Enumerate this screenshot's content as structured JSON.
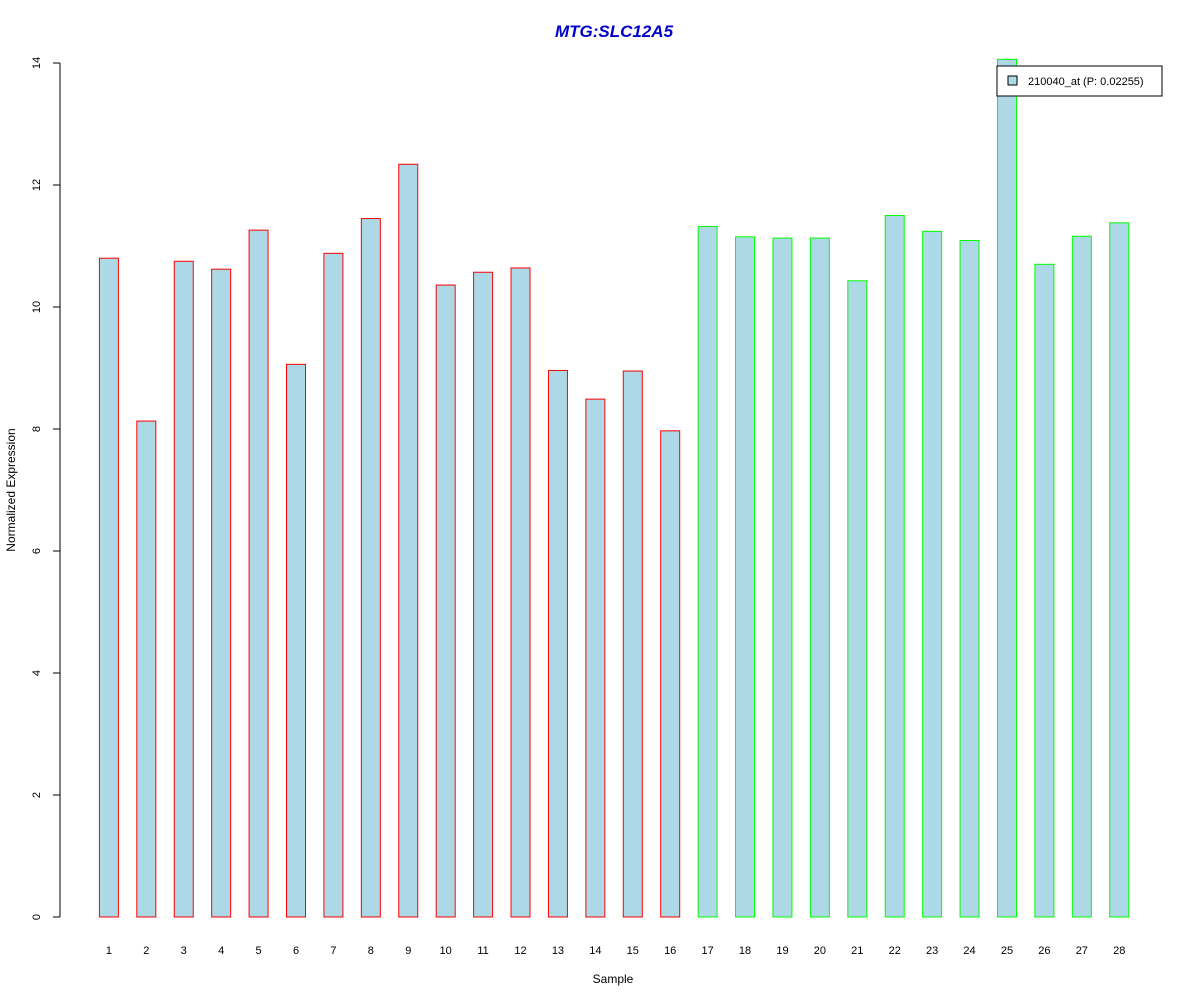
{
  "chart_data": {
    "type": "bar",
    "title": "MTG:SLC12A5",
    "xlabel": "Sample",
    "ylabel": "Normalized Expression",
    "categories": [
      "1",
      "2",
      "3",
      "4",
      "5",
      "6",
      "7",
      "8",
      "9",
      "10",
      "11",
      "12",
      "13",
      "14",
      "15",
      "16",
      "17",
      "18",
      "19",
      "20",
      "21",
      "22",
      "23",
      "24",
      "25",
      "26",
      "27",
      "28"
    ],
    "series": [
      {
        "name": "210040_at (P: 0.02255)",
        "values": [
          10.8,
          8.13,
          10.75,
          10.62,
          11.26,
          9.06,
          10.88,
          11.45,
          12.34,
          10.36,
          10.57,
          10.64,
          8.96,
          8.49,
          8.95,
          7.97,
          11.32,
          11.15,
          11.13,
          11.13,
          10.43,
          11.5,
          11.24,
          11.09,
          14.06,
          10.7,
          11.16,
          11.38
        ]
      }
    ],
    "ylim": [
      0,
      14
    ],
    "yticks": [
      0,
      2,
      4,
      6,
      8,
      10,
      12,
      14
    ],
    "grid": false,
    "legend_position": "top-right",
    "colors": {
      "title": "#0000cc",
      "bar_fill": "#add8e6",
      "group1_border": "#ff0000",
      "group2_border": "#00ff00",
      "axis": "#000000"
    },
    "groups": [
      {
        "border": "#ff0000",
        "first": 1,
        "last": 16
      },
      {
        "border": "#00ff00",
        "first": 17,
        "last": 28
      }
    ]
  }
}
